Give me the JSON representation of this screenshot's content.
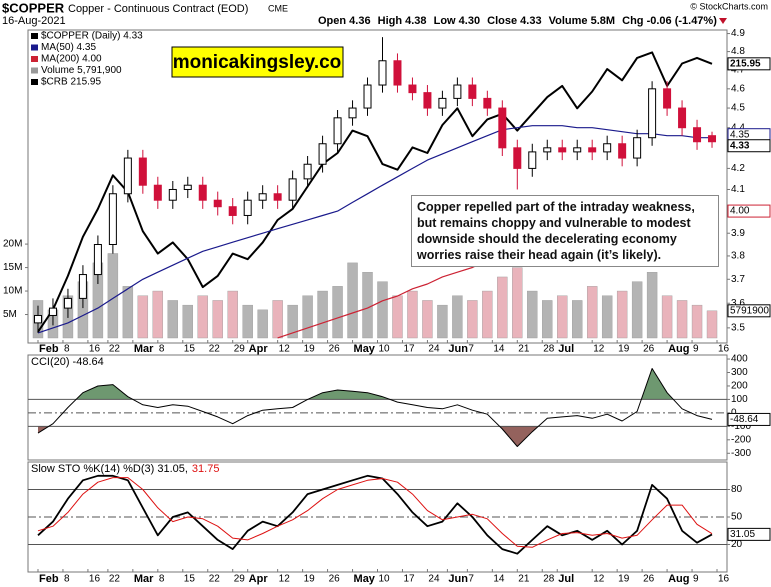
{
  "header": {
    "symbol": "$COPPER",
    "name": "Copper - Continuous Contract (EOD)",
    "exchange": "CME",
    "date": "16-Aug-2021",
    "credit": "© StockCharts.com",
    "quote": [
      "Open 4.36",
      "High 4.38",
      "Low 4.30",
      "Close 4.33",
      "Volume 5.8M",
      "Chg -0.06 (-1.47%)"
    ]
  },
  "chart_data": [
    {
      "type": "candlestick",
      "legend": [
        {
          "label": "$COPPER (Daily) 4.33",
          "color": "#000000"
        },
        {
          "label": "MA(50) 4.35",
          "color": "#1a1a8c"
        },
        {
          "label": "MA(200) 4.00",
          "color": "#cc2233"
        },
        {
          "label": "Volume 5,791,900",
          "color": "#999999"
        },
        {
          "label": "$CRB 215.95",
          "color": "#000000"
        }
      ],
      "banner": "monicakingsley.co",
      "annotation": "Copper repelled part of the intraday weakness, but remains choppy and vulnerable to modest downside should the decelerating economy worries raise their head again (it’s likely).",
      "x": [
        0,
        3,
        6,
        9,
        12,
        15,
        18,
        21,
        24,
        27,
        30,
        33,
        36,
        39,
        42,
        45,
        48,
        51,
        54,
        57,
        60,
        63,
        66,
        69,
        72,
        75,
        78,
        81,
        84,
        87,
        90,
        93,
        96,
        99,
        102,
        105,
        108,
        111,
        114,
        117,
        120,
        123,
        126,
        129,
        132,
        135
      ],
      "xlim": [
        -2,
        138
      ],
      "xticks": [
        {
          "value": 0,
          "label": "Feb"
        },
        {
          "value": 5,
          "label": "8"
        },
        {
          "value": 10,
          "label": "16"
        },
        {
          "value": 14,
          "label": "22"
        },
        {
          "value": 19,
          "label": "Mar"
        },
        {
          "value": 24,
          "label": "8"
        },
        {
          "value": 29,
          "label": "15"
        },
        {
          "value": 34,
          "label": "22"
        },
        {
          "value": 39,
          "label": "29"
        },
        {
          "value": 42,
          "label": "Apr"
        },
        {
          "value": 48,
          "label": "12"
        },
        {
          "value": 53,
          "label": "19"
        },
        {
          "value": 58,
          "label": "26"
        },
        {
          "value": 63,
          "label": "May"
        },
        {
          "value": 68,
          "label": "10"
        },
        {
          "value": 73,
          "label": "17"
        },
        {
          "value": 78,
          "label": "24"
        },
        {
          "value": 82,
          "label": "Jun"
        },
        {
          "value": 86,
          "label": "7"
        },
        {
          "value": 91,
          "label": "14"
        },
        {
          "value": 96,
          "label": "21"
        },
        {
          "value": 101,
          "label": "28"
        },
        {
          "value": 104,
          "label": "Jul"
        },
        {
          "value": 111,
          "label": "12"
        },
        {
          "value": 116,
          "label": "19"
        },
        {
          "value": 121,
          "label": "26"
        },
        {
          "value": 126,
          "label": "Aug"
        },
        {
          "value": 131,
          "label": "9"
        },
        {
          "value": 136,
          "label": "16"
        }
      ],
      "open": [
        3.52,
        3.55,
        3.58,
        3.62,
        3.72,
        3.85,
        4.08,
        4.25,
        4.12,
        4.05,
        4.1,
        4.12,
        4.05,
        4.02,
        3.98,
        4.05,
        4.08,
        4.05,
        4.15,
        4.22,
        4.32,
        4.45,
        4.5,
        4.62,
        4.75,
        4.62,
        4.58,
        4.5,
        4.55,
        4.62,
        4.55,
        4.5,
        4.3,
        4.2,
        4.28,
        4.3,
        4.28,
        4.3,
        4.28,
        4.32,
        4.25,
        4.35,
        4.6,
        4.5,
        4.4,
        4.36
      ],
      "high": [
        3.59,
        3.62,
        3.66,
        3.76,
        3.89,
        4.12,
        4.29,
        4.29,
        4.16,
        4.14,
        4.16,
        4.16,
        4.09,
        4.06,
        4.09,
        4.12,
        4.12,
        4.19,
        4.26,
        4.36,
        4.49,
        4.54,
        4.66,
        4.88,
        4.79,
        4.66,
        4.62,
        4.59,
        4.66,
        4.66,
        4.59,
        4.54,
        4.34,
        4.32,
        4.34,
        4.34,
        4.34,
        4.34,
        4.36,
        4.36,
        4.39,
        4.64,
        4.64,
        4.54,
        4.44,
        4.38
      ],
      "low": [
        3.48,
        3.51,
        3.54,
        3.58,
        3.68,
        3.81,
        4.04,
        4.08,
        4.01,
        4.01,
        4.06,
        4.01,
        3.98,
        3.94,
        3.94,
        4.01,
        4.01,
        4.01,
        4.11,
        4.18,
        4.28,
        4.41,
        4.46,
        4.58,
        4.58,
        4.54,
        4.46,
        4.46,
        4.51,
        4.51,
        4.46,
        4.26,
        4.1,
        4.16,
        4.24,
        4.24,
        4.24,
        4.24,
        4.24,
        4.21,
        4.21,
        4.31,
        4.46,
        4.36,
        4.29,
        4.3
      ],
      "close": [
        3.55,
        3.58,
        3.62,
        3.72,
        3.85,
        4.08,
        4.25,
        4.12,
        4.05,
        4.1,
        4.12,
        4.05,
        4.02,
        3.98,
        4.05,
        4.08,
        4.05,
        4.15,
        4.22,
        4.32,
        4.45,
        4.5,
        4.62,
        4.75,
        4.62,
        4.58,
        4.5,
        4.55,
        4.62,
        4.55,
        4.5,
        4.3,
        4.2,
        4.28,
        4.3,
        4.28,
        4.3,
        4.28,
        4.32,
        4.25,
        4.35,
        4.6,
        4.5,
        4.4,
        4.33,
        4.33
      ],
      "colors": {
        "up": "#000000",
        "down": "#d0103a",
        "volume_up": "#b4b4b4",
        "volume_down": "#e9b3bb"
      },
      "series": [
        {
          "values": [
            168,
            172,
            178,
            185,
            190,
            196,
            193,
            186,
            182,
            184,
            181,
            176,
            178,
            182,
            181,
            184,
            188,
            190,
            194,
            198,
            200,
            204,
            203,
            198,
            197,
            201,
            200,
            205,
            208,
            203,
            206,
            207,
            204,
            207,
            210,
            212,
            208,
            211,
            215,
            213,
            217,
            218,
            212,
            216,
            217,
            215.95
          ],
          "color": "#000000",
          "axis": "y2",
          "width": 2
        },
        {
          "values": [
            null,
            null,
            null,
            null,
            null,
            null,
            null,
            null,
            null,
            null,
            null,
            null,
            null,
            null,
            null,
            null,
            3.46,
            3.48,
            3.5,
            3.52,
            3.54,
            3.56,
            3.58,
            3.61,
            3.63,
            3.66,
            3.68,
            3.71,
            3.73,
            3.75,
            3.78,
            3.8,
            3.82,
            3.84,
            3.86,
            3.88,
            3.9,
            3.92,
            3.93,
            3.95,
            3.96,
            3.97,
            3.98,
            3.99,
            4.0,
            4.0
          ],
          "color": "#cc2233",
          "width": 1.2
        },
        {
          "values": [
            3.48,
            3.5,
            3.52,
            3.55,
            3.58,
            3.62,
            3.66,
            3.7,
            3.73,
            3.76,
            3.79,
            3.82,
            3.84,
            3.86,
            3.88,
            3.9,
            3.92,
            3.94,
            3.96,
            3.98,
            4.0,
            4.04,
            4.08,
            4.12,
            4.16,
            4.2,
            4.24,
            4.27,
            4.3,
            4.33,
            4.36,
            4.39,
            4.4,
            4.41,
            4.41,
            4.41,
            4.4,
            4.4,
            4.39,
            4.38,
            4.37,
            4.37,
            4.36,
            4.36,
            4.35,
            4.35
          ],
          "color": "#1a1a8c",
          "width": 1.2
        }
      ],
      "ylim": [
        3.44,
        4.92
      ],
      "log_scale": true,
      "yticks": [
        3.5,
        3.6,
        3.7,
        3.8,
        3.9,
        4.1,
        4.2,
        4.4,
        4.5,
        4.6,
        4.7,
        4.8,
        4.9
      ],
      "y2lim": [
        166,
        222
      ],
      "volume": {
        "values": [
          8,
          6,
          9,
          12,
          16,
          18,
          11,
          9,
          10,
          8,
          7,
          9,
          8,
          10,
          7,
          6,
          8,
          7,
          9,
          10,
          11,
          16,
          14,
          12,
          9,
          10,
          8,
          7,
          9,
          8,
          10,
          13,
          15,
          10,
          8,
          9,
          8,
          11,
          9,
          10,
          12,
          14,
          9,
          8,
          7,
          5.79
        ],
        "ylim": [
          0,
          23
        ],
        "yticks": [
          {
            "value": 5,
            "label": "5M"
          },
          {
            "value": 10,
            "label": "10M"
          },
          {
            "value": 15,
            "label": "15M"
          },
          {
            "value": 20,
            "label": "20M"
          }
        ]
      },
      "tags": {
        "crb": "215.95",
        "ma50": "4.35",
        "close": "4.33",
        "ma200": "4.00",
        "volume": "5791900"
      }
    },
    {
      "type": "line",
      "title": "CCI(20) -48.64",
      "series": [
        {
          "values": [
            -150,
            -80,
            40,
            150,
            200,
            210,
            120,
            60,
            40,
            60,
            50,
            10,
            -30,
            -80,
            -20,
            20,
            30,
            40,
            100,
            150,
            170,
            160,
            150,
            120,
            80,
            60,
            40,
            30,
            60,
            20,
            -10,
            -120,
            -250,
            -140,
            -40,
            -30,
            -20,
            -40,
            -10,
            -60,
            10,
            330,
            150,
            30,
            -20,
            -48.64
          ],
          "color": "#000000"
        }
      ],
      "ylim": [
        -350,
        430
      ],
      "yticks": [
        400,
        300,
        200,
        100,
        0,
        -100,
        -200,
        -300
      ],
      "ref_lines": [
        100,
        -100
      ],
      "dashed_lines": [
        0
      ],
      "fill_above": {
        "level": 100,
        "color": "#6e9870"
      },
      "fill_below": {
        "level": -100,
        "color": "#94625d"
      },
      "tag": "-48.64"
    },
    {
      "type": "line",
      "title": "Slow STO %K(14) %D(3) 31.05,",
      "title_value": "31.75",
      "series": [
        {
          "values": [
            30,
            45,
            70,
            90,
            95,
            95,
            90,
            60,
            30,
            50,
            55,
            40,
            25,
            15,
            35,
            45,
            40,
            55,
            75,
            80,
            85,
            90,
            95,
            92,
            75,
            55,
            40,
            45,
            65,
            50,
            30,
            15,
            10,
            25,
            40,
            30,
            35,
            25,
            35,
            20,
            35,
            85,
            70,
            35,
            22,
            31.05
          ],
          "color": "#000000",
          "width": 1.8
        },
        {
          "values": [
            35,
            40,
            55,
            75,
            88,
            93,
            93,
            80,
            60,
            45,
            50,
            48,
            40,
            27,
            25,
            32,
            40,
            47,
            57,
            70,
            80,
            85,
            90,
            92,
            88,
            75,
            57,
            47,
            50,
            53,
            48,
            32,
            18,
            17,
            25,
            32,
            33,
            30,
            32,
            27,
            30,
            47,
            63,
            63,
            42,
            31.75
          ],
          "color": "#dd1111",
          "width": 1
        }
      ],
      "ylim": [
        -10,
        110
      ],
      "yticks": [
        80,
        50,
        20
      ],
      "ref_lines": [
        80,
        20
      ],
      "dashed_lines": [
        50
      ],
      "tag": "31.05"
    }
  ]
}
